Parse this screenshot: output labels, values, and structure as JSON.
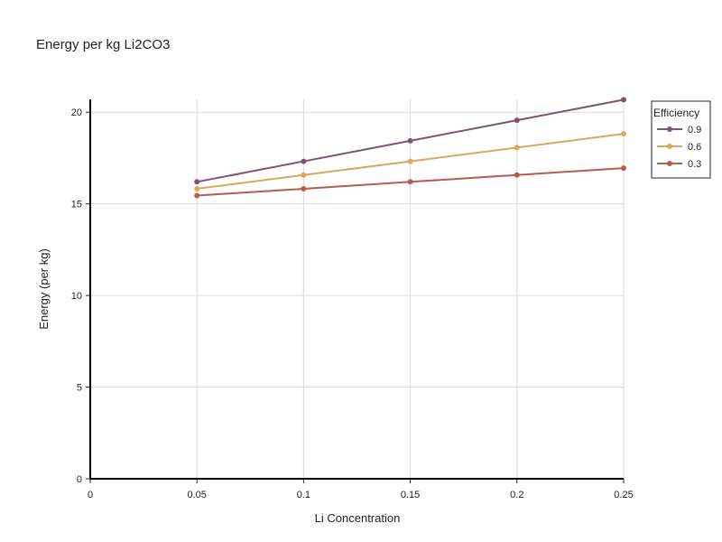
{
  "chart_data": {
    "type": "line",
    "title": "Energy per kg Li2CO3",
    "xlabel": "Li Concentration",
    "ylabel": "Energy (per kg)",
    "xlim": [
      0,
      0.25
    ],
    "ylim": [
      0,
      20.7
    ],
    "x_ticks": [
      0,
      0.05,
      0.1,
      0.15,
      0.2,
      0.25
    ],
    "x_tick_labels": [
      "0",
      "0.05",
      "0.1",
      "0.15",
      "0.2",
      "0.25"
    ],
    "y_ticks": [
      0,
      5,
      10,
      15,
      20
    ],
    "y_tick_labels": [
      "0",
      "5",
      "10",
      "15",
      "20"
    ],
    "grid": true,
    "legend": {
      "title": "Efficiency",
      "placement": "top-right"
    },
    "x": [
      0.05,
      0.1,
      0.15,
      0.2,
      0.25
    ],
    "series": [
      {
        "name": "0.9",
        "color": "#7f5470",
        "values": [
          16.2,
          17.32,
          18.44,
          19.56,
          20.68
        ]
      },
      {
        "name": "0.6",
        "color": "#d9a85f",
        "values": [
          15.82,
          16.57,
          17.32,
          18.07,
          18.82
        ]
      },
      {
        "name": "0.3",
        "color": "#b25c52",
        "values": [
          15.45,
          15.82,
          16.2,
          16.57,
          16.95
        ]
      }
    ]
  }
}
